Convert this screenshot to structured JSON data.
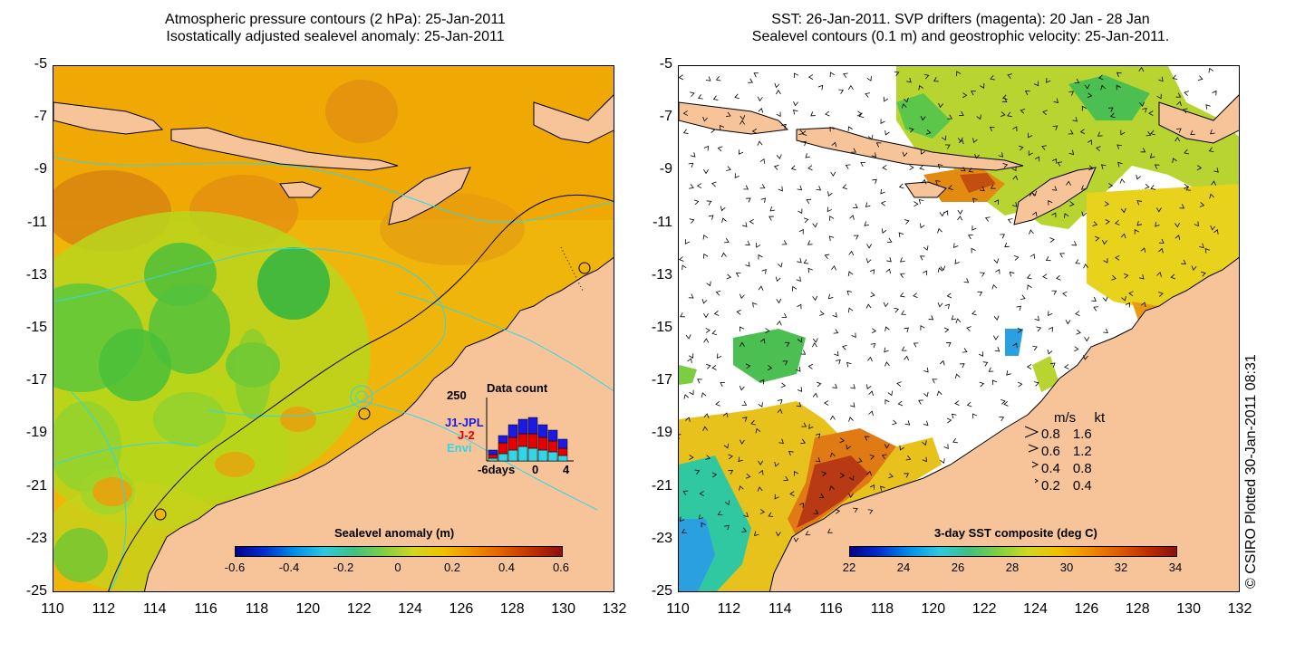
{
  "left_panel": {
    "title_line1": "Atmospheric pressure contours (2 hPa): 25-Jan-2011",
    "title_line2": "Isostatically adjusted sealevel anomaly: 25-Jan-2011",
    "colorbar": {
      "title": "Sealevel anomaly (m)",
      "ticks": [
        "-0.6",
        "-0.4",
        "-0.2",
        "0",
        "0.2",
        "0.4",
        "0.6"
      ],
      "range": [
        -0.6,
        0.6
      ]
    },
    "data_count_inset": {
      "title": "Data count",
      "max_label": "250",
      "missions": [
        {
          "name": "J1-JPL",
          "color": "#1a1ae6"
        },
        {
          "name": "J-2",
          "color": "#e60000"
        },
        {
          "name": "Envi",
          "color": "#33d6e6"
        }
      ],
      "x_label": "days",
      "x_ticks": [
        "-6",
        "0",
        "4"
      ]
    }
  },
  "right_panel": {
    "title_line1": "SST: 26-Jan-2011. SVP drifters (magenta): 20 Jan - 28 Jan",
    "title_line2": "Sealevel contours (0.1 m) and geostrophic velocity: 25-Jan-2011.",
    "colorbar": {
      "title": "3-day SST composite (deg C)",
      "ticks": [
        "22",
        "24",
        "26",
        "28",
        "30",
        "32",
        "34"
      ],
      "range": [
        22,
        34
      ]
    },
    "velocity_legend": {
      "header_ms": "m/s",
      "header_kt": "kt",
      "rows": [
        {
          "ms": "0.8",
          "kt": "1.6"
        },
        {
          "ms": "0.6",
          "kt": "1.2"
        },
        {
          "ms": "0.4",
          "kt": "0.8"
        },
        {
          "ms": "0.2",
          "kt": "0.4"
        }
      ]
    }
  },
  "axes": {
    "y_ticks": [
      "-5",
      "-7",
      "-9",
      "-11",
      "-13",
      "-15",
      "-17",
      "-19",
      "-21",
      "-23",
      "-25"
    ],
    "x_ticks": [
      "110",
      "112",
      "114",
      "116",
      "118",
      "120",
      "122",
      "124",
      "126",
      "128",
      "130",
      "132"
    ],
    "lon_range": [
      110,
      132
    ],
    "lat_range": [
      -25,
      -5
    ]
  },
  "credit": "© CSIRO Plotted 30-Jan-2011 08:31",
  "colors": {
    "land": "#f7c49a",
    "coastline": "#000000",
    "contour_cyan": "#33d6e6"
  }
}
